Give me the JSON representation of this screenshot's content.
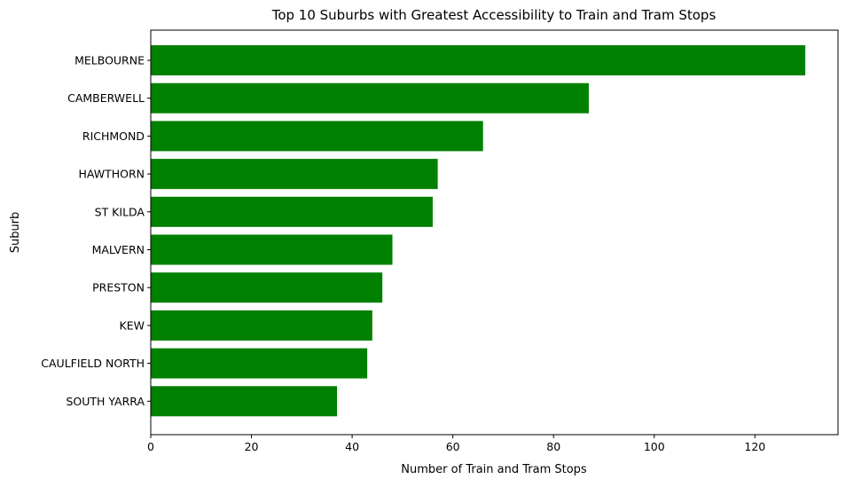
{
  "chart_data": {
    "type": "bar",
    "orientation": "horizontal",
    "title": "Top 10 Suburbs with Greatest Accessibility to Train and Tram Stops",
    "xlabel": "Number of Train and Tram Stops",
    "ylabel": "Suburb",
    "categories": [
      "MELBOURNE",
      "CAMBERWELL",
      "RICHMOND",
      "HAWTHORN",
      "ST KILDA",
      "MALVERN",
      "PRESTON",
      "KEW",
      "CAULFIELD NORTH",
      "SOUTH YARRA"
    ],
    "values": [
      130,
      87,
      66,
      57,
      56,
      48,
      46,
      44,
      43,
      37
    ],
    "xlim": [
      0,
      136.5
    ],
    "xticks": [
      0,
      20,
      40,
      60,
      80,
      100,
      120
    ],
    "grid": false,
    "legend": "none",
    "bar_color": "#008000"
  }
}
